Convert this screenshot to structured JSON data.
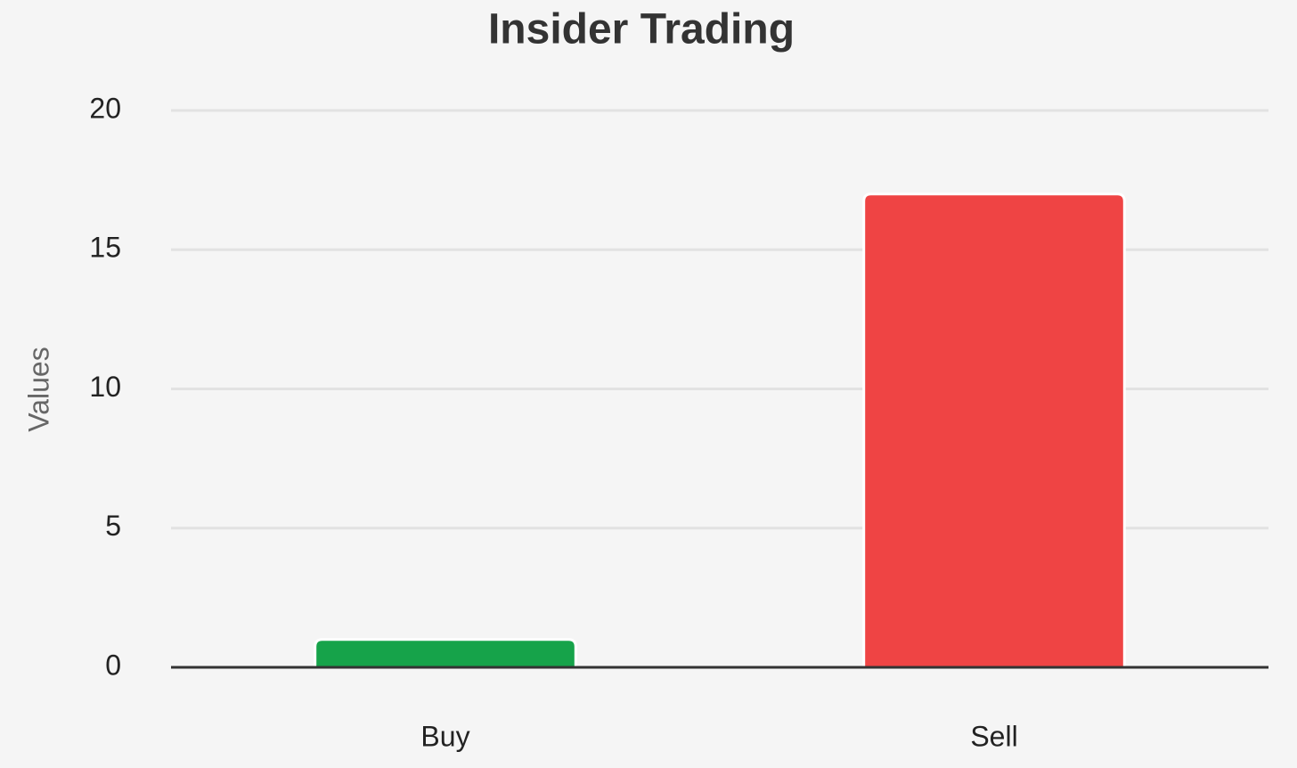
{
  "chart_data": {
    "type": "bar",
    "title": "Insider Trading",
    "y_label": "Values",
    "categories": [
      "Buy",
      "Sell"
    ],
    "values": [
      1,
      17
    ],
    "colors": [
      "#16a34a",
      "#ef4444"
    ],
    "ylim": [
      0,
      20
    ],
    "yticks": [
      0,
      5,
      10,
      15,
      20
    ],
    "grid": true
  }
}
